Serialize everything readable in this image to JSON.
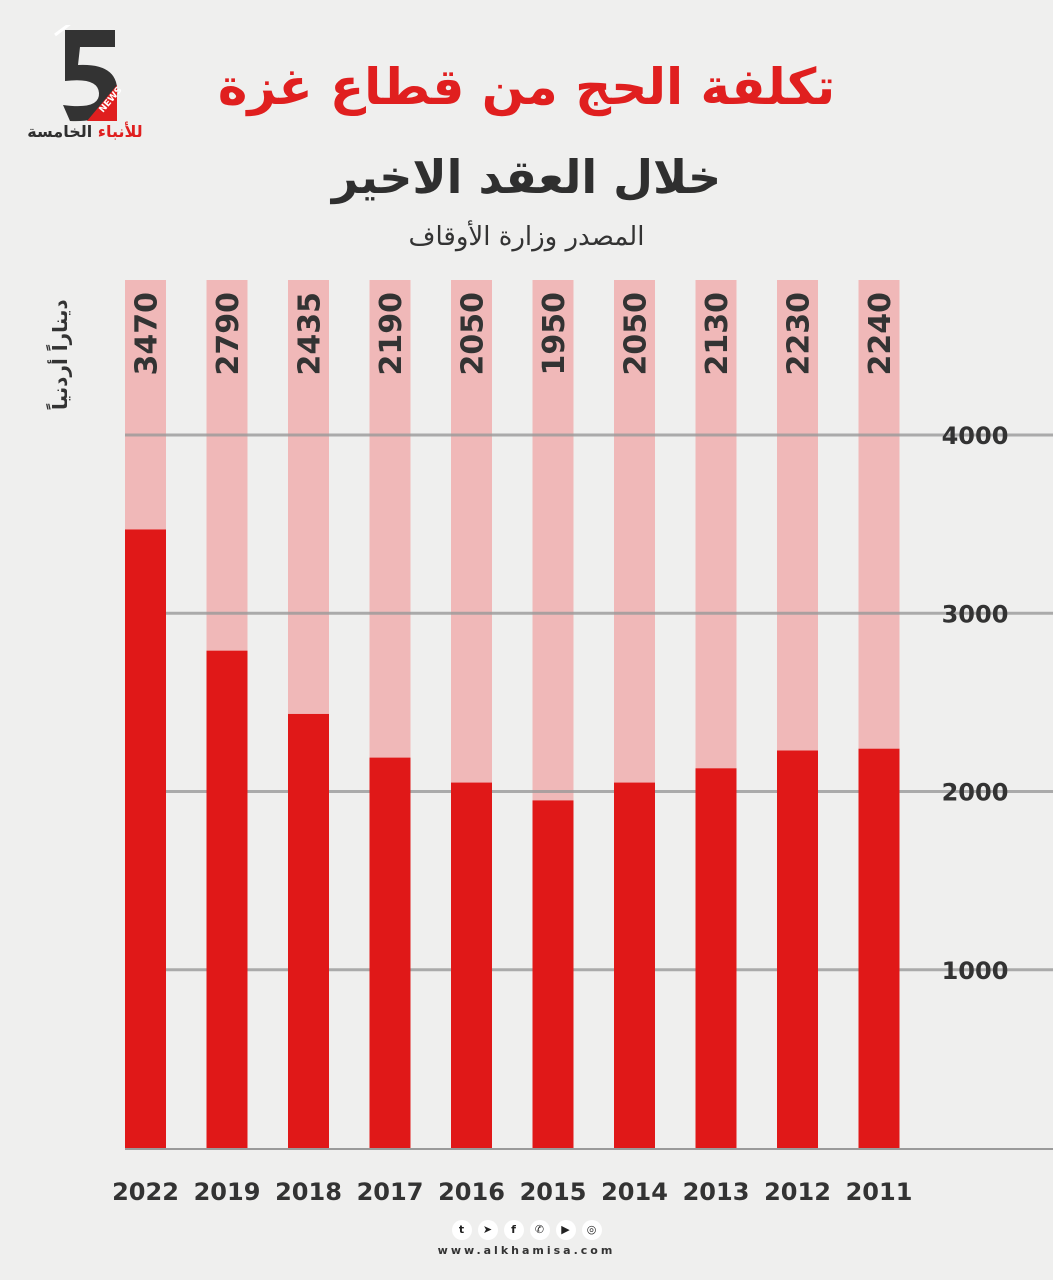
{
  "header": {
    "title": "تكلفة الحج من قطاع غزة",
    "subtitle": "خلال العقد الاخير",
    "source": "المصدر وزارة الأوقاف"
  },
  "logo": {
    "brand": "الخامسة",
    "brand_accent": "للأنباء",
    "badge": "NEWS",
    "number": "5"
  },
  "footer": {
    "url": "www.alkhamisa.com",
    "icons": [
      "twitter-icon",
      "telegram-icon",
      "facebook-icon",
      "whatsapp-icon",
      "youtube-icon",
      "instagram-icon"
    ]
  },
  "colors": {
    "bar": "#e01818",
    "bar_bg": "#f0b8b8",
    "title": "#e01f1f"
  },
  "chart_data": {
    "type": "bar",
    "title": "تكلفة الحج من قطاع غزة خلال العقد الاخير",
    "ylabel": "ديناراً أردنياً",
    "xlabel": "",
    "categories": [
      "2022",
      "2019",
      "2018",
      "2017",
      "2016",
      "2015",
      "2014",
      "2013",
      "2012",
      "2011"
    ],
    "values": [
      3470,
      2790,
      2435,
      2190,
      2050,
      1950,
      2050,
      2130,
      2230,
      2240
    ],
    "yticks": [
      1000,
      2000,
      3000,
      4000
    ],
    "ylim": [
      0,
      4000
    ],
    "grid": true
  }
}
